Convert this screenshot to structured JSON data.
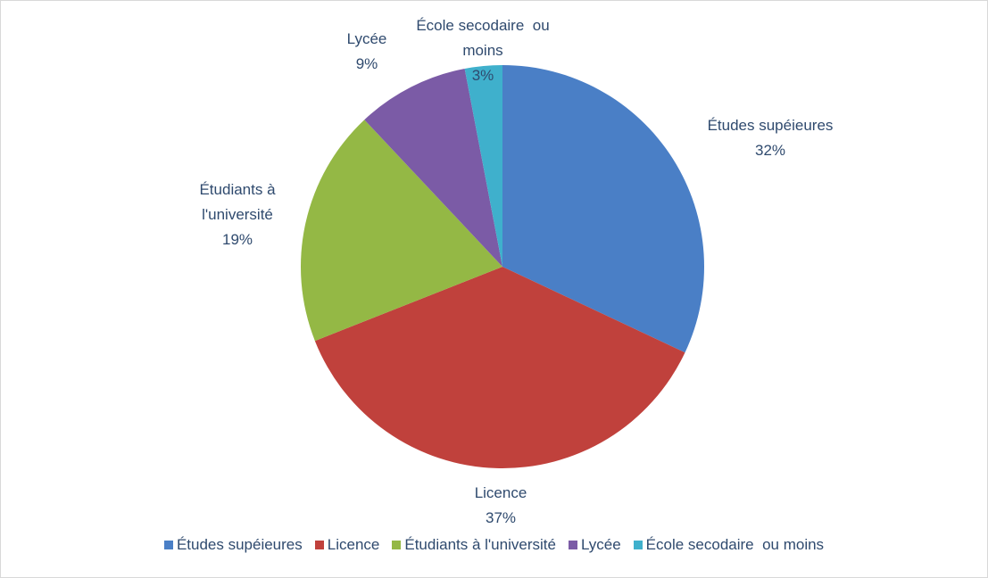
{
  "chart_data": {
    "type": "pie",
    "categories": [
      "Études supéieures",
      "Licence",
      "Étudiants à l'université",
      "Lycée",
      "École secodaire  ou moins"
    ],
    "values": [
      32,
      37,
      19,
      9,
      3
    ],
    "value_labels": [
      "32%",
      "37%",
      "19%",
      "9%",
      "3%"
    ],
    "colors": [
      "#4a7fc6",
      "#c0413c",
      "#94b845",
      "#7b5ba6",
      "#3fb0cc"
    ],
    "legend": "bottom"
  }
}
